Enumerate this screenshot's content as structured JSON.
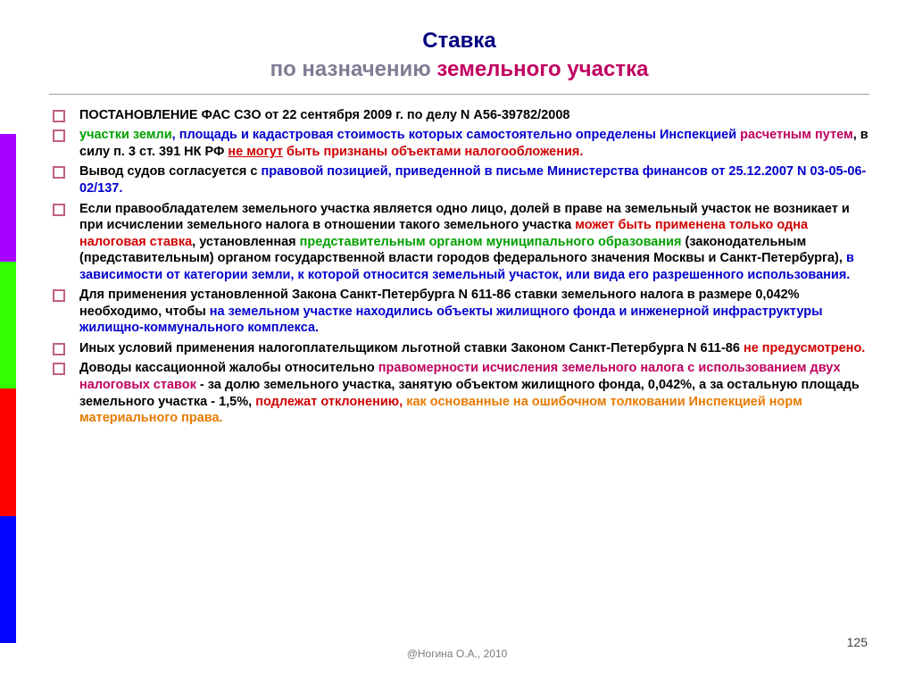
{
  "sidebar_colors": [
    "#a800ff",
    "#32ff00",
    "#ff0200",
    "#0206ff"
  ],
  "title": {
    "line1": "Ставка",
    "line2a": "по назначению ",
    "line2b": "земельного участка"
  },
  "bullets": [
    {
      "segments": [
        {
          "t": "ПОСТАНОВЛЕНИЕ ФАС СЗО от 22 сентября 2009 г. по делу N А56-39782/2008",
          "cls": "c-black"
        }
      ]
    },
    {
      "segments": [
        {
          "t": "участки земли",
          "cls": "c-green"
        },
        {
          "t": ", площадь и кадастровая стоимость которых самостоятельно определены Инспекцией ",
          "cls": "c-blue"
        },
        {
          "t": "расчетным путем",
          "cls": "c-magenta"
        },
        {
          "t": ", в силу п. 3 ст. 391 НК РФ ",
          "cls": "c-black"
        },
        {
          "t": "не могут",
          "cls": "c-red u"
        },
        {
          "t": " быть признаны объектами налогообложения.",
          "cls": "c-red"
        }
      ]
    },
    {
      "segments": [
        {
          "t": "Вывод судов согласуется с ",
          "cls": "c-black"
        },
        {
          "t": "правовой позицией, приведенной в письме Министерства финансов от 25.12.2007 N 03-05-06-02/137.",
          "cls": "c-blue"
        }
      ]
    },
    {
      "segments": [
        {
          "t": "Если правообладателем земельного участка является одно лицо, долей в праве на земельный участок не возникает и при исчислении земельного налога в отношении такого земельного участка ",
          "cls": "c-black"
        },
        {
          "t": "может быть применена только одна налоговая ставка",
          "cls": "c-red"
        },
        {
          "t": ", установленная ",
          "cls": "c-black"
        },
        {
          "t": "представительным органом муниципального образования",
          "cls": "c-green"
        },
        {
          "t": "  (законодательным (представительным) органом государственной власти городов федерального значения Москвы и Санкт-Петербурга), ",
          "cls": "c-black"
        },
        {
          "t": "в зависимости от категории земли, к которой относится земельный участок, или вида его разрешенного использования.",
          "cls": "c-blue"
        }
      ]
    },
    {
      "segments": [
        {
          "t": "Для применения установленной Закона Санкт-Петербурга N 611-86 ставки земельного налога в размере 0,042% необходимо, чтобы ",
          "cls": "c-black"
        },
        {
          "t": "на земельном участке находились объекты жилищного фонда и инженерной инфраструктуры жилищно-коммунального комплекса.",
          "cls": "c-blue"
        }
      ]
    },
    {
      "segments": [
        {
          "t": "Иных условий применения налогоплательщиком льготной ставки Законом Санкт-Петербурга N 611-86 ",
          "cls": "c-black"
        },
        {
          "t": "не предусмотрено.",
          "cls": "c-red"
        }
      ]
    },
    {
      "segments": [
        {
          "t": "Доводы кассационной жалобы относительно ",
          "cls": "c-black"
        },
        {
          "t": "правомерности исчисления земельного налога с использованием двух налоговых ставок",
          "cls": "c-magenta"
        },
        {
          "t": " - за долю земельного участка, занятую объектом жилищного фонда, 0,042%, а за остальную площадь земельного участка - 1,5%, ",
          "cls": "c-black"
        },
        {
          "t": "подлежат отклонению, ",
          "cls": "c-red"
        },
        {
          "t": "как основанные на ошибочном толковании Инспекцией норм материального права.",
          "cls": "c-orange"
        }
      ]
    }
  ],
  "footer": "@Ногина О.А., 2010",
  "pagenum": "125"
}
